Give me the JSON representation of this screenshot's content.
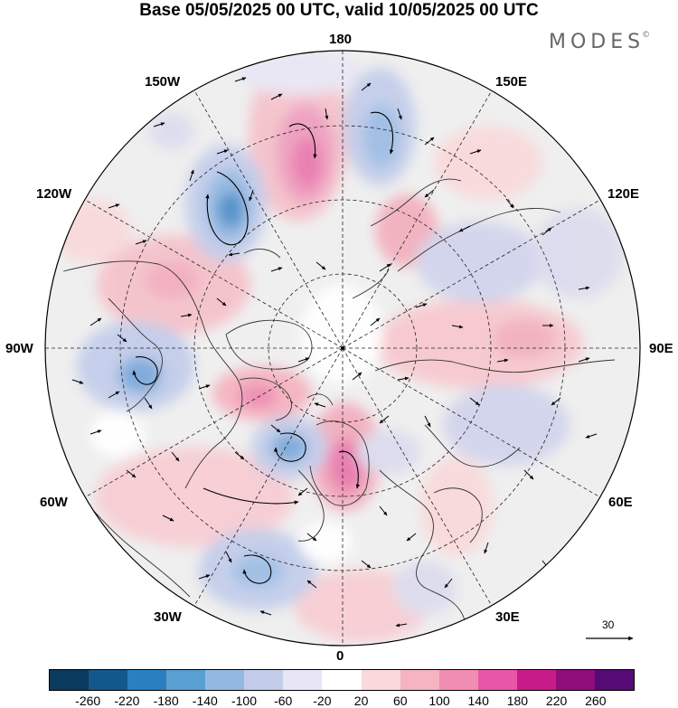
{
  "title": "Base 05/05/2025 00 UTC, valid 10/05/2025 00 UTC",
  "brand": {
    "name": "MODES",
    "mark": "©"
  },
  "longitude_labels": {
    "top": "180",
    "bottom": "0",
    "left": "90W",
    "right": "90E",
    "upper_left_1": "150W",
    "upper_left_2": "120W",
    "upper_right_1": "150E",
    "upper_right_2": "120E",
    "lower_left_1": "60W",
    "lower_left_2": "30W",
    "lower_right_1": "60E",
    "lower_right_2": "30E"
  },
  "reference_vector": {
    "value": "30"
  },
  "colorbar": {
    "colors": [
      "#0a3a5e",
      "#13588c",
      "#2a7fc0",
      "#5a9fd2",
      "#93b8e2",
      "#c3cdea",
      "#e8e6f4",
      "#ffffff",
      "#f9d9da",
      "#f5b4c0",
      "#ef8db3",
      "#e756a7",
      "#c81b8a",
      "#8e0e7c",
      "#560a75"
    ],
    "ticks": [
      "-260",
      "-220",
      "-180",
      "-140",
      "-100",
      "-60",
      "-20",
      "20",
      "60",
      "100",
      "140",
      "180",
      "220",
      "260"
    ]
  }
}
